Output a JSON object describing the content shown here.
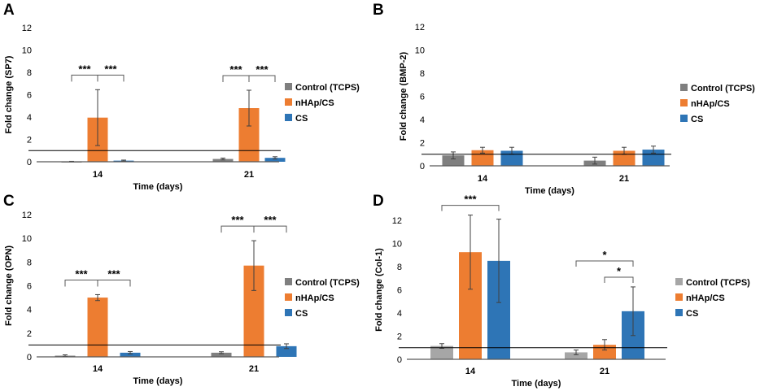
{
  "colors": {
    "control_dark": "#7f7f7f",
    "control_light": "#a6a6a6",
    "nhap": "#ed7d31",
    "cs": "#2e75b6",
    "axis": "#595959",
    "errorbar": "#404040"
  },
  "chart_data": [
    {
      "panel": "A",
      "type": "bar",
      "ylabel": "Fold change (SP7)",
      "xlabel": "Time (days)",
      "categories": [
        "14",
        "21"
      ],
      "ylim": [
        0,
        12
      ],
      "yticks": [
        "0",
        "2",
        "4",
        "6",
        "8",
        "10",
        "12"
      ],
      "reference_line": 1,
      "legend": [
        "Control (TCPS)",
        "nHAp/CS",
        "CS"
      ],
      "series": [
        {
          "name": "Control (TCPS)",
          "color": "#7f7f7f",
          "values": [
            0.02,
            0.25
          ],
          "errors": [
            0.02,
            0.08
          ]
        },
        {
          "name": "nHAp/CS",
          "color": "#ed7d31",
          "values": [
            3.95,
            4.8
          ],
          "errors": [
            2.5,
            1.6
          ]
        },
        {
          "name": "CS",
          "color": "#2e75b6",
          "values": [
            0.1,
            0.35
          ],
          "errors": [
            0.05,
            0.1
          ]
        }
      ],
      "significance": [
        {
          "group": 0,
          "from": 0,
          "to": 1,
          "label": "***"
        },
        {
          "group": 0,
          "from": 1,
          "to": 2,
          "label": "***"
        },
        {
          "group": 1,
          "from": 0,
          "to": 1,
          "label": "***"
        },
        {
          "group": 1,
          "from": 1,
          "to": 2,
          "label": "***"
        }
      ]
    },
    {
      "panel": "B",
      "type": "bar",
      "ylabel": "Fold change (BMP-2)",
      "xlabel": "Time (days)",
      "categories": [
        "14",
        "21"
      ],
      "ylim": [
        0,
        12
      ],
      "yticks": [
        "0",
        "2",
        "4",
        "6",
        "8",
        "10",
        "12"
      ],
      "reference_line": 1,
      "legend": [
        "Control (TCPS)",
        "nHAp/CS",
        "CS"
      ],
      "series": [
        {
          "name": "Control (TCPS)",
          "color": "#7f7f7f",
          "values": [
            0.9,
            0.45
          ],
          "errors": [
            0.3,
            0.3
          ]
        },
        {
          "name": "nHAp/CS",
          "color": "#ed7d31",
          "values": [
            1.35,
            1.3
          ],
          "errors": [
            0.25,
            0.3
          ]
        },
        {
          "name": "CS",
          "color": "#2e75b6",
          "values": [
            1.3,
            1.4
          ],
          "errors": [
            0.3,
            0.3
          ]
        }
      ],
      "significance": []
    },
    {
      "panel": "C",
      "type": "bar",
      "ylabel": "Fold change (OPN)",
      "xlabel": "Time (days)",
      "categories": [
        "14",
        "21"
      ],
      "ylim": [
        0,
        12
      ],
      "yticks": [
        "0",
        "2",
        "4",
        "6",
        "8",
        "10",
        "12"
      ],
      "reference_line": 1,
      "legend": [
        "Control (TCPS)",
        "nHAp/CS",
        "CS"
      ],
      "series": [
        {
          "name": "Control (TCPS)",
          "color": "#7f7f7f",
          "values": [
            0.1,
            0.35
          ],
          "errors": [
            0.07,
            0.08
          ]
        },
        {
          "name": "nHAp/CS",
          "color": "#ed7d31",
          "values": [
            5.0,
            7.7
          ],
          "errors": [
            0.25,
            2.1
          ]
        },
        {
          "name": "CS",
          "color": "#2e75b6",
          "values": [
            0.35,
            0.9
          ],
          "errors": [
            0.1,
            0.2
          ]
        }
      ],
      "significance": [
        {
          "group": 0,
          "from": 0,
          "to": 1,
          "label": "***"
        },
        {
          "group": 0,
          "from": 1,
          "to": 2,
          "label": "***"
        },
        {
          "group": 1,
          "from": 0,
          "to": 1,
          "label": "***"
        },
        {
          "group": 1,
          "from": 1,
          "to": 2,
          "label": "***"
        }
      ]
    },
    {
      "panel": "D",
      "type": "bar",
      "ylabel": "Fold change (Col-1)",
      "xlabel": "Time (days)",
      "categories": [
        "14",
        "21"
      ],
      "ylim": [
        0,
        12
      ],
      "yticks": [
        "0",
        "2",
        "4",
        "6",
        "8",
        "10",
        "12"
      ],
      "reference_line": 1,
      "legend": [
        "Control (TCPS)",
        "nHAp/CS",
        "CS"
      ],
      "series": [
        {
          "name": "Control (TCPS)",
          "color": "#a6a6a6",
          "values": [
            1.15,
            0.6
          ],
          "errors": [
            0.2,
            0.2
          ]
        },
        {
          "name": "nHAp/CS",
          "color": "#ed7d31",
          "values": [
            9.25,
            1.25
          ],
          "errors": [
            3.2,
            0.45
          ]
        },
        {
          "name": "CS",
          "color": "#2e75b6",
          "values": [
            8.5,
            4.15
          ],
          "errors": [
            3.6,
            2.1
          ]
        }
      ],
      "significance": [
        {
          "group": 0,
          "from": 0,
          "to": 2,
          "label": "***"
        },
        {
          "group": 1,
          "from": 0,
          "to": 2,
          "label": "*"
        },
        {
          "group": 1,
          "from": 1,
          "to": 2,
          "label": "*"
        }
      ]
    }
  ]
}
